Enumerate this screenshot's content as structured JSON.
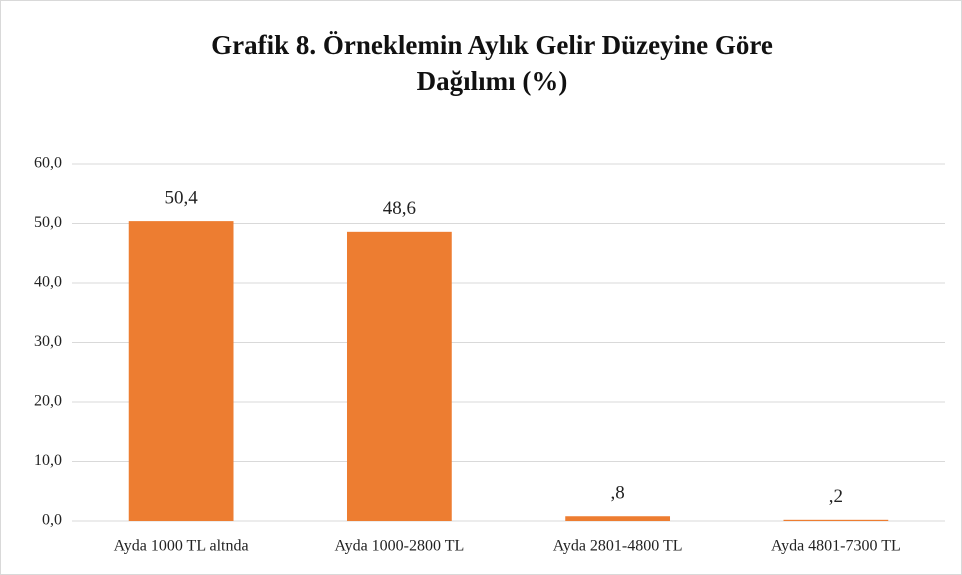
{
  "chart_data": {
    "type": "bar",
    "title": [
      "Grafik 8. Örneklemin Aylık Gelir Düzeyine Göre",
      "Dağılımı (%)"
    ],
    "categories": [
      "Ayda 1000 TL altnda",
      "Ayda 1000-2800 TL",
      "Ayda 2801-4800 TL",
      "Ayda 4801-7300 TL"
    ],
    "values": [
      50.4,
      48.6,
      0.8,
      0.2
    ],
    "value_labels": [
      "50,4",
      "48,6",
      ",8",
      ",2"
    ],
    "color": "#ed7d31",
    "ylim": [
      0,
      60
    ],
    "yticks": [
      {
        "value": 0,
        "label": "0,0"
      },
      {
        "value": 10,
        "label": "10,0"
      },
      {
        "value": 20,
        "label": "20,0"
      },
      {
        "value": 30,
        "label": "30,0"
      },
      {
        "value": 40,
        "label": "40,0"
      },
      {
        "value": 50,
        "label": "50,0"
      },
      {
        "value": 60,
        "label": "60,0"
      }
    ],
    "grid": true
  }
}
